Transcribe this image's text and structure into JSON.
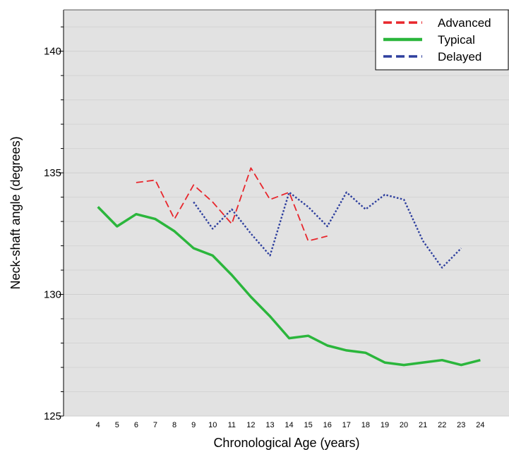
{
  "chart_data": {
    "type": "line",
    "title": "",
    "xlabel": "Chronological Age (years)",
    "ylabel": "Neck-shaft angle (degrees)",
    "xlim": [
      2.2,
      25.5
    ],
    "ylim": [
      125,
      141.7
    ],
    "x_ticks": [
      4,
      5,
      6,
      7,
      8,
      9,
      10,
      11,
      12,
      13,
      14,
      15,
      16,
      17,
      18,
      19,
      20,
      21,
      22,
      23,
      24
    ],
    "y_ticks": [
      125,
      130,
      135,
      140
    ],
    "y_minor_ticks": [
      126,
      127,
      128,
      129,
      131,
      132,
      133,
      134,
      136,
      137,
      138,
      139,
      141
    ],
    "background": "#e2e2e2",
    "grid": true,
    "legend_position": "top-right",
    "series": [
      {
        "name": "Advanced",
        "color": "#e8262c",
        "dash": "dashed",
        "x": [
          6,
          7,
          8,
          9,
          10,
          11,
          12,
          13,
          14,
          15,
          16
        ],
        "values": [
          134.6,
          134.7,
          133.1,
          134.5,
          133.8,
          132.9,
          135.2,
          133.9,
          134.2,
          132.2,
          132.4
        ]
      },
      {
        "name": "Typical",
        "color": "#2bb63c",
        "dash": "solid",
        "x": [
          4,
          5,
          6,
          7,
          8,
          9,
          10,
          11,
          12,
          13,
          14,
          15,
          16,
          17,
          18,
          19,
          20,
          21,
          22,
          23,
          24
        ],
        "values": [
          133.6,
          132.8,
          133.3,
          133.1,
          132.6,
          131.9,
          131.6,
          130.8,
          129.9,
          129.1,
          128.2,
          128.3,
          127.9,
          127.7,
          127.6,
          127.2,
          127.1,
          127.2,
          127.3,
          127.1,
          127.3
        ]
      },
      {
        "name": "Delayed",
        "color": "#2e3f9e",
        "dash": "dotted",
        "x": [
          9,
          10,
          11,
          12,
          13,
          14,
          15,
          16,
          17,
          18,
          19,
          20,
          21,
          22,
          23
        ],
        "values": [
          133.8,
          132.7,
          133.5,
          132.5,
          131.6,
          134.2,
          133.6,
          132.8,
          134.2,
          133.5,
          134.1,
          133.9,
          132.2,
          131.1,
          131.9
        ]
      }
    ]
  }
}
